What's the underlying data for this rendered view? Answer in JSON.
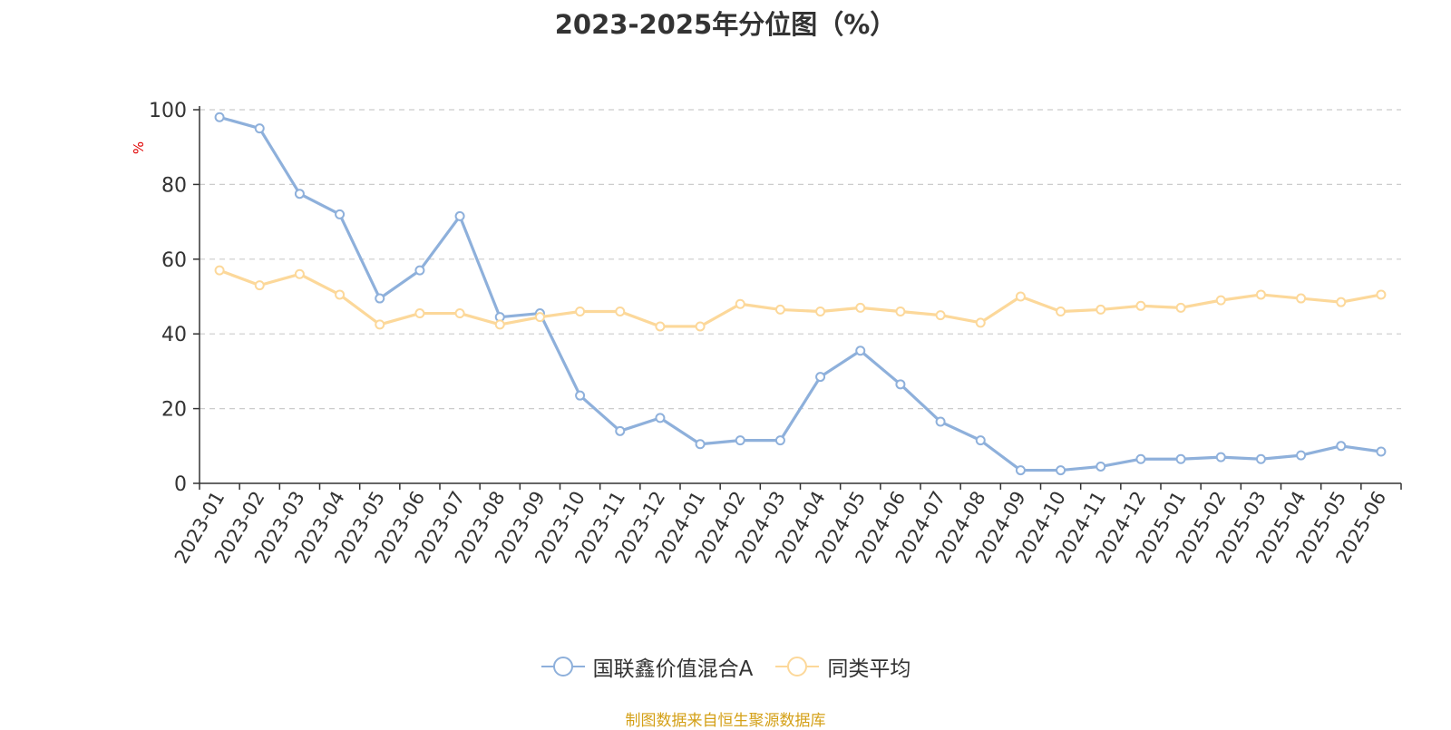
{
  "chart_data": {
    "type": "line",
    "title": "2023-2025年分位图（%）",
    "ylabel": "%",
    "xlabel": "",
    "ylim": [
      0,
      100
    ],
    "yticks": [
      0,
      20,
      40,
      60,
      80,
      100
    ],
    "grid": "horizontal dashed",
    "legend_position": "bottom",
    "categories": [
      "2023-01",
      "2023-02",
      "2023-03",
      "2023-04",
      "2023-05",
      "2023-06",
      "2023-07",
      "2023-08",
      "2023-09",
      "2023-10",
      "2023-11",
      "2023-12",
      "2024-01",
      "2024-02",
      "2024-03",
      "2024-04",
      "2024-05",
      "2024-06",
      "2024-07",
      "2024-08",
      "2024-09",
      "2024-10",
      "2024-11",
      "2024-12",
      "2025-01",
      "2025-02",
      "2025-03",
      "2025-04",
      "2025-05",
      "2025-06"
    ],
    "series": [
      {
        "name": "国联鑫价值混合A",
        "color": "#8eb0db",
        "values": [
          98,
          95,
          77.5,
          72,
          49.5,
          57,
          71.5,
          44.5,
          45.5,
          23.5,
          14,
          17.5,
          10.5,
          11.5,
          11.5,
          28.5,
          35.5,
          26.5,
          16.5,
          11.5,
          3.5,
          3.5,
          4.5,
          6.5,
          6.5,
          7,
          6.5,
          7.5,
          10,
          8.5
        ]
      },
      {
        "name": "同类平均",
        "color": "#fcd89a",
        "values": [
          57,
          53,
          56,
          50.5,
          42.5,
          45.5,
          45.5,
          42.5,
          44.5,
          46,
          46,
          42,
          42,
          48,
          46.5,
          46,
          47,
          46,
          45,
          43,
          50,
          46,
          46.5,
          47.5,
          47,
          49,
          50.5,
          49.5,
          48.5,
          50.5
        ]
      }
    ]
  },
  "source_text": "制图数据来自恒生聚源数据库"
}
